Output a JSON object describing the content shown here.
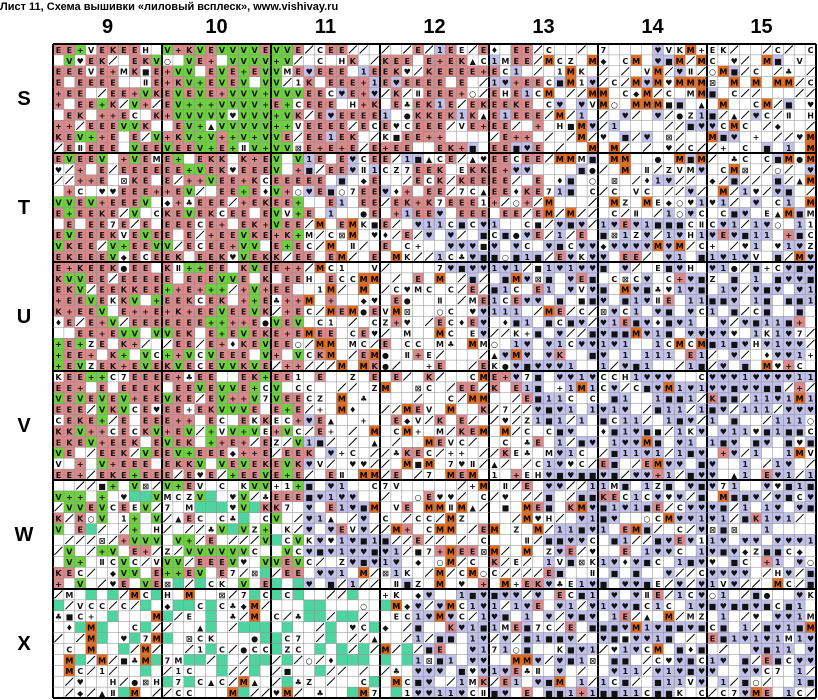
{
  "header": {
    "title": "Лист 11, Схема вышивки «лиловый всплеск», www.vishivay.ru"
  },
  "column_labels": [
    "9",
    "10",
    "11",
    "12",
    "13",
    "14",
    "15"
  ],
  "row_labels": [
    "S",
    "T",
    "U",
    "V",
    "W",
    "X"
  ],
  "legend_colors": {
    "salmon": "#d9898a",
    "green": "#6ecf3f",
    "lavender": "#c2bfe9",
    "orange": "#e06a1e",
    "teal": "#4fd3a0",
    "white": "#ffffff",
    "grid_major": "#000000",
    "grid_minor": "#8a8a8a"
  }
}
